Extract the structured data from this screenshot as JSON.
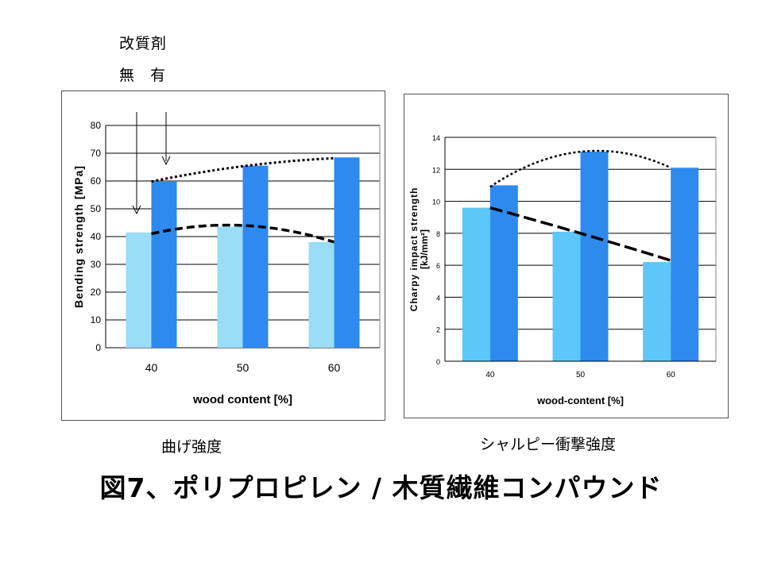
{
  "legend": {
    "title": "改質剤",
    "without_label": "無",
    "with_label": "有"
  },
  "captions": {
    "left": "曲げ強度",
    "right": "シャルピー衝撃強度"
  },
  "figure_title": "図7、ポリプロピレン / 木質繊維コンパウンド",
  "colors": {
    "left_without": "#99ddf7",
    "left_with": "#2e8aee",
    "right_without": "#5cc7f8",
    "right_with": "#2e8aee"
  },
  "chart_data": [
    {
      "type": "bar",
      "title": "",
      "xlabel": "wood content [%]",
      "ylabel": "Bending strength [MPa]",
      "categories": [
        "40",
        "50",
        "60"
      ],
      "ylim": [
        0,
        80
      ],
      "yticks": [
        "0",
        "10",
        "20",
        "30",
        "40",
        "50",
        "60",
        "70",
        "80"
      ],
      "grid": true,
      "series": [
        {
          "values": [
            41.5,
            43.5,
            38
          ]
        },
        {
          "values": [
            60,
            65.5,
            68.5
          ]
        }
      ],
      "trendlines": [
        {
          "style": "dashed",
          "values": [
            41,
            44,
            38
          ]
        },
        {
          "style": "dotted",
          "values": [
            59.8,
            65.3,
            68.2
          ]
        }
      ],
      "annotations": [
        "arrows from legend labels to bars at 40"
      ]
    },
    {
      "type": "bar",
      "title": "",
      "xlabel": "wood-content [%]",
      "ylabel_line1": "Charpy impact strength",
      "ylabel_line2": "[kJ/mm²]",
      "categories": [
        "40",
        "50",
        "60"
      ],
      "ylim": [
        0,
        14
      ],
      "yticks": [
        "0",
        "2",
        "4",
        "6",
        "8",
        "10",
        "12",
        "14"
      ],
      "grid": true,
      "series": [
        {
          "values": [
            9.6,
            8.1,
            6.2
          ]
        },
        {
          "values": [
            11,
            13.1,
            12.1
          ]
        }
      ],
      "trendlines": [
        {
          "style": "dashed",
          "values": [
            9.6,
            8,
            6.3
          ]
        },
        {
          "style": "dotted",
          "values": [
            10.9,
            13.1,
            12.1
          ]
        }
      ]
    }
  ]
}
